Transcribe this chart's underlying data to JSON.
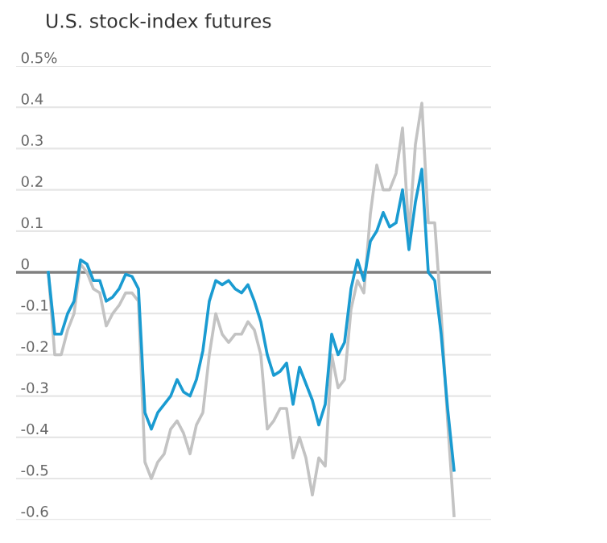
{
  "chart_data": {
    "type": "line",
    "title": "U.S. stock-index futures",
    "categories": [
      null,
      null,
      null,
      null,
      null,
      null,
      null,
      null,
      null,
      null,
      null,
      null,
      null,
      null,
      null,
      null,
      null,
      null,
      null,
      null,
      null,
      null,
      null,
      null,
      null,
      null,
      null,
      null,
      null,
      null,
      null,
      null,
      null,
      null,
      null,
      null,
      null,
      null,
      null,
      null,
      null,
      null,
      null,
      null,
      null,
      null,
      null,
      null,
      null,
      null,
      null,
      null,
      null,
      null,
      null,
      null,
      null,
      null,
      null,
      null,
      null,
      null,
      null,
      null
    ],
    "series": [
      {
        "color": "#c3c3c3",
        "values": [
          0.0,
          -0.2,
          -0.2,
          -0.14,
          -0.1,
          0.02,
          0.0,
          -0.04,
          -0.05,
          -0.13,
          -0.1,
          -0.08,
          -0.05,
          -0.05,
          -0.07,
          -0.46,
          -0.5,
          -0.46,
          -0.44,
          -0.38,
          -0.36,
          -0.39,
          -0.44,
          -0.37,
          -0.34,
          -0.2,
          -0.1,
          -0.15,
          -0.17,
          -0.15,
          -0.15,
          -0.12,
          -0.14,
          -0.2,
          -0.38,
          -0.36,
          -0.33,
          -0.33,
          -0.45,
          -0.4,
          -0.45,
          -0.54,
          -0.45,
          -0.47,
          -0.2,
          -0.28,
          -0.26,
          -0.09,
          -0.02,
          -0.05,
          0.14,
          0.26,
          0.2,
          0.2,
          0.24,
          0.35,
          0.09,
          0.31,
          0.41,
          0.12,
          0.12,
          -0.1,
          -0.36,
          -0.59
        ]
      },
      {
        "color": "#1a9bd1",
        "values": [
          0.0,
          -0.15,
          -0.15,
          -0.1,
          -0.07,
          0.03,
          0.02,
          -0.02,
          -0.02,
          -0.07,
          -0.06,
          -0.04,
          -0.005,
          -0.01,
          -0.04,
          -0.34,
          -0.38,
          -0.34,
          -0.32,
          -0.3,
          -0.26,
          -0.29,
          -0.3,
          -0.26,
          -0.19,
          -0.07,
          -0.02,
          -0.03,
          -0.02,
          -0.04,
          -0.05,
          -0.03,
          -0.07,
          -0.12,
          -0.2,
          -0.25,
          -0.24,
          -0.22,
          -0.32,
          -0.23,
          -0.27,
          -0.31,
          -0.37,
          -0.32,
          -0.15,
          -0.2,
          -0.17,
          -0.04,
          0.03,
          -0.02,
          0.075,
          0.1,
          0.145,
          0.11,
          0.12,
          0.2,
          0.055,
          0.17,
          0.25,
          0.0,
          -0.02,
          -0.15,
          -0.33,
          -0.48
        ]
      }
    ],
    "ylim": [
      -0.6,
      0.5
    ],
    "yticks": [
      {
        "value": 0.5,
        "label": "0.5%"
      },
      0.4,
      0.3,
      0.2,
      0.1,
      0,
      {
        "value": -0.1,
        "label": "-0.1"
      },
      {
        "value": -0.2,
        "label": "-0.2"
      },
      {
        "value": -0.3,
        "label": "-0.3"
      },
      {
        "value": -0.4,
        "label": "-0.4"
      },
      {
        "value": -0.5,
        "label": "-0.5"
      },
      {
        "value": -0.6,
        "label": "-0.6"
      }
    ],
    "ref_lines": [
      {
        "axis": "y",
        "value": 0,
        "color": "#808080"
      }
    ],
    "grid": "y",
    "tick_labels": "y",
    "marker": "none",
    "line_style": "solid"
  }
}
